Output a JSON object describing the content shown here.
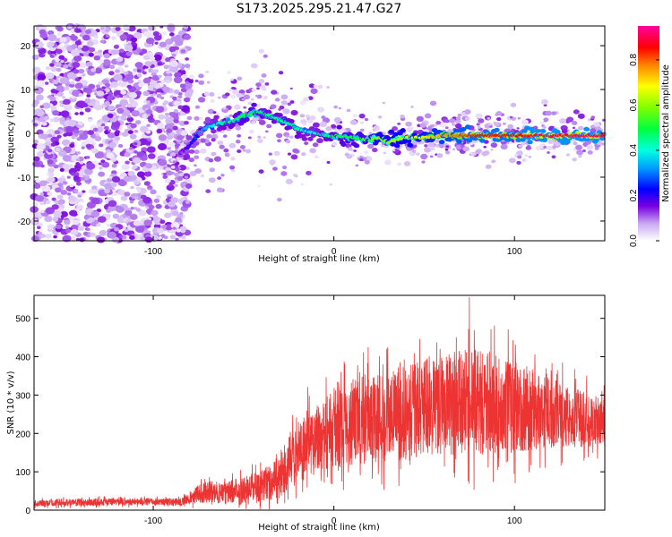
{
  "page_title": "S173.2025.295.21.47.G27",
  "chart_data": [
    {
      "type": "heatmap",
      "title": "S173.2025.295.21.47.G27",
      "xlabel": "Height of straight line (km)",
      "ylabel": "Frequency (Hz)",
      "xlim": [
        -166,
        150
      ],
      "ylim": [
        -24.5,
        24.5
      ],
      "x_ticks": [
        -100,
        0,
        100
      ],
      "x_tick_labels": [
        "-100",
        "0",
        "100"
      ],
      "y_ticks": [
        -20,
        -10,
        0,
        10,
        20
      ],
      "y_tick_labels": [
        "-20",
        "-10",
        "0",
        "10",
        "20"
      ],
      "colorbar": {
        "label": "Normalized spectral amplitude",
        "range": [
          0,
          0.95
        ],
        "ticks": [
          0.0,
          0.2,
          0.4,
          0.6,
          0.8
        ],
        "tick_labels": [
          "0.0",
          "0.2",
          "0.4",
          "0.6",
          "0.8"
        ]
      },
      "noise_region_x": [
        -166,
        -80
      ],
      "signal_ridge": {
        "x": [
          -85,
          -80,
          -75,
          -70,
          -65,
          -60,
          -55,
          -50,
          -45,
          -40,
          -35,
          -30,
          -25,
          -20,
          -15,
          -10,
          -5,
          0,
          10,
          20,
          25,
          30,
          40,
          50,
          60,
          70,
          80,
          90,
          100,
          110,
          120,
          130,
          140,
          150
        ],
        "freq": [
          -4.5,
          -3,
          0,
          1.5,
          2,
          2.5,
          3,
          4,
          4.5,
          5,
          4,
          3,
          2.5,
          1,
          0.5,
          0,
          -0.5,
          -0.5,
          -1,
          -1.5,
          -1,
          -2,
          -1,
          -1,
          -0.5,
          -0.5,
          -0.5,
          -0.5,
          -0.5,
          -0.5,
          -0.5,
          -0.5,
          -0.5,
          -0.5
        ],
        "amplitude": [
          0.15,
          0.2,
          0.3,
          0.35,
          0.4,
          0.45,
          0.45,
          0.5,
          0.5,
          0.45,
          0.45,
          0.45,
          0.45,
          0.45,
          0.4,
          0.4,
          0.45,
          0.5,
          0.5,
          0.55,
          0.6,
          0.6,
          0.65,
          0.7,
          0.75,
          0.8,
          0.85,
          0.85,
          0.85,
          0.9,
          0.9,
          0.9,
          0.9,
          0.9
        ]
      }
    },
    {
      "type": "line",
      "title": "",
      "xlabel": "Height of straight line (km)",
      "ylabel": "SNR (10 * v/v)",
      "xlim": [
        -166,
        150
      ],
      "ylim": [
        0,
        560
      ],
      "x_ticks": [
        -100,
        0,
        100
      ],
      "x_tick_labels": [
        "-100",
        "0",
        "100"
      ],
      "y_ticks": [
        0,
        100,
        200,
        300,
        400,
        500
      ],
      "y_tick_labels": [
        "0",
        "100",
        "200",
        "300",
        "400",
        "500"
      ],
      "color": "#ee3333",
      "envelope": {
        "x": [
          -166,
          -140,
          -120,
          -100,
          -85,
          -80,
          -75,
          -70,
          -60,
          -50,
          -40,
          -30,
          -25,
          -20,
          -10,
          0,
          10,
          20,
          30,
          40,
          50,
          60,
          70,
          75,
          80,
          90,
          100,
          110,
          120,
          130,
          140,
          150
        ],
        "mid": [
          18,
          20,
          22,
          22,
          22,
          30,
          42,
          48,
          45,
          55,
          65,
          85,
          120,
          150,
          190,
          215,
          230,
          240,
          245,
          255,
          265,
          275,
          280,
          285,
          280,
          275,
          270,
          260,
          255,
          245,
          235,
          230
        ],
        "amp": [
          10,
          12,
          12,
          12,
          12,
          20,
          30,
          35,
          35,
          45,
          55,
          70,
          85,
          100,
          120,
          130,
          140,
          150,
          150,
          155,
          160,
          165,
          170,
          175,
          170,
          160,
          150,
          130,
          115,
          100,
          90,
          80
        ]
      },
      "peak_value": 555,
      "peak_x": 75
    }
  ]
}
